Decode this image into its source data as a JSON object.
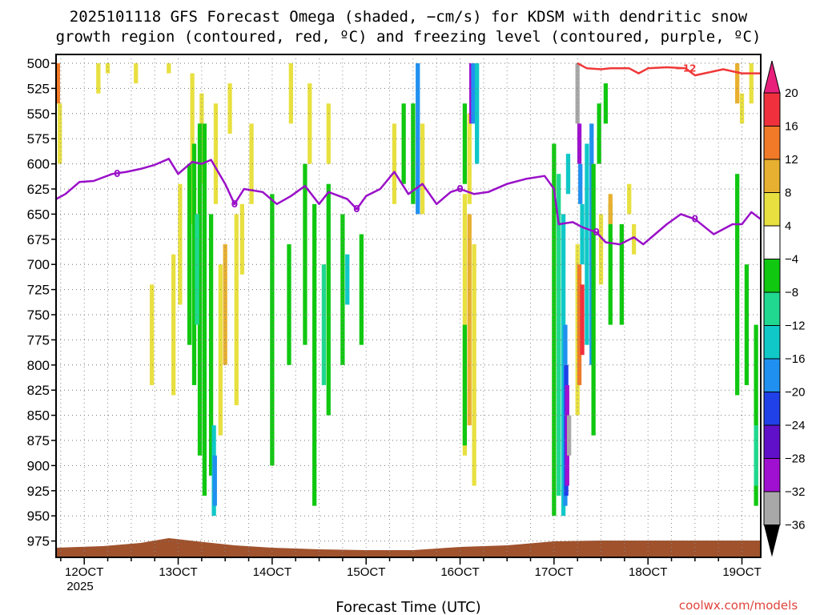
{
  "chart_data": {
    "type": "heatmap",
    "title_line1": "2025101118 GFS Forecast Omega (shaded, −cm/s) for KDSM with dendritic snow",
    "title_line2": "growth region (contoured, red, ºC) and freezing level (contoured, purple, ºC)",
    "xlabel": "Forecast Time (UTC)",
    "watermark": "coolwx.com/models",
    "year_label": "2025",
    "y_ticks": [
      "500",
      "525",
      "550",
      "575",
      "600",
      "625",
      "650",
      "675",
      "700",
      "725",
      "750",
      "775",
      "800",
      "825",
      "850",
      "875",
      "900",
      "925",
      "950",
      "975"
    ],
    "y_range_hPa": [
      500,
      1000
    ],
    "x_range_day": [
      11.7,
      19.2
    ],
    "x_ticks": [
      {
        "day": 12,
        "label": "12OCT"
      },
      {
        "day": 13,
        "label": "13OCT"
      },
      {
        "day": 14,
        "label": "14OCT"
      },
      {
        "day": 15,
        "label": "15OCT"
      },
      {
        "day": 16,
        "label": "16OCT"
      },
      {
        "day": 17,
        "label": "17OCT"
      },
      {
        "day": 18,
        "label": "18OCT"
      },
      {
        "day": 19,
        "label": "19OCT"
      }
    ],
    "colorbar": {
      "labels": [
        "20",
        "16",
        "12",
        "8",
        "4",
        "−4",
        "−8",
        "−12",
        "−16",
        "−20",
        "−24",
        "−28",
        "−32",
        "−36"
      ],
      "segments": [
        {
          "from": 16,
          "to": 20,
          "color": "#f0303c"
        },
        {
          "from": 12,
          "to": 16,
          "color": "#f07a28"
        },
        {
          "from": 8,
          "to": 12,
          "color": "#e8b030"
        },
        {
          "from": 4,
          "to": 8,
          "color": "#e8e040"
        },
        {
          "from": -4,
          "to": 4,
          "color": "#ffffff"
        },
        {
          "from": -8,
          "to": -4,
          "color": "#10c810"
        },
        {
          "from": -12,
          "to": -8,
          "color": "#20d890"
        },
        {
          "from": -16,
          "to": -12,
          "color": "#10c8c8"
        },
        {
          "from": -20,
          "to": -16,
          "color": "#2090f0"
        },
        {
          "from": -24,
          "to": -20,
          "color": "#2040e8"
        },
        {
          "from": -28,
          "to": -24,
          "color": "#6010c8"
        },
        {
          "from": -32,
          "to": -28,
          "color": "#a010d0"
        },
        {
          "from": -36,
          "to": -32,
          "color": "#a8a8a8"
        }
      ],
      "top_arrow_color": "#e8207c",
      "bottom_arrow_color": "#000000"
    },
    "shaded_cells": [
      {
        "t": 11.72,
        "p1": 500,
        "p2": 540,
        "v": 14
      },
      {
        "t": 11.74,
        "p1": 540,
        "p2": 600,
        "v": 6
      },
      {
        "t": 12.15,
        "p1": 500,
        "p2": 530,
        "v": 6
      },
      {
        "t": 12.25,
        "p1": 500,
        "p2": 510,
        "v": 6
      },
      {
        "t": 12.55,
        "p1": 500,
        "p2": 520,
        "v": 6
      },
      {
        "t": 12.9,
        "p1": 500,
        "p2": 510,
        "v": 6
      },
      {
        "t": 13.15,
        "p1": 510,
        "p2": 660,
        "v": 6
      },
      {
        "t": 13.25,
        "p1": 530,
        "p2": 620,
        "v": 6
      },
      {
        "t": 13.4,
        "p1": 540,
        "p2": 640,
        "v": 6
      },
      {
        "t": 13.55,
        "p1": 520,
        "p2": 570,
        "v": 6
      },
      {
        "t": 13.02,
        "p1": 620,
        "p2": 740,
        "v": 6
      },
      {
        "t": 13.12,
        "p1": 600,
        "p2": 780,
        "v": -6
      },
      {
        "t": 13.17,
        "p1": 580,
        "p2": 820,
        "v": -6
      },
      {
        "t": 13.23,
        "p1": 560,
        "p2": 890,
        "v": -6
      },
      {
        "t": 13.28,
        "p1": 560,
        "p2": 930,
        "v": -6
      },
      {
        "t": 13.2,
        "p1": 650,
        "p2": 760,
        "v": -10
      },
      {
        "t": 13.35,
        "p1": 650,
        "p2": 910,
        "v": -6
      },
      {
        "t": 13.38,
        "p1": 860,
        "p2": 950,
        "v": -14
      },
      {
        "t": 13.39,
        "p1": 890,
        "p2": 940,
        "v": -18
      },
      {
        "t": 13.45,
        "p1": 700,
        "p2": 870,
        "v": 6
      },
      {
        "t": 13.5,
        "p1": 680,
        "p2": 800,
        "v": 10
      },
      {
        "t": 13.62,
        "p1": 650,
        "p2": 840,
        "v": 6
      },
      {
        "t": 13.68,
        "p1": 640,
        "p2": 710,
        "v": 6
      },
      {
        "t": 12.72,
        "p1": 720,
        "p2": 820,
        "v": 6
      },
      {
        "t": 12.95,
        "p1": 690,
        "p2": 830,
        "v": 6
      },
      {
        "t": 13.78,
        "p1": 560,
        "p2": 640,
        "v": 6
      },
      {
        "t": 14.0,
        "p1": 630,
        "p2": 900,
        "v": -6
      },
      {
        "t": 14.18,
        "p1": 680,
        "p2": 800,
        "v": -6
      },
      {
        "t": 14.35,
        "p1": 600,
        "p2": 780,
        "v": -6
      },
      {
        "t": 14.45,
        "p1": 640,
        "p2": 940,
        "v": -6
      },
      {
        "t": 14.6,
        "p1": 620,
        "p2": 850,
        "v": -6
      },
      {
        "t": 14.55,
        "p1": 700,
        "p2": 820,
        "v": -10
      },
      {
        "t": 14.75,
        "p1": 650,
        "p2": 800,
        "v": -6
      },
      {
        "t": 14.95,
        "p1": 670,
        "p2": 780,
        "v": -6
      },
      {
        "t": 14.8,
        "p1": 690,
        "p2": 740,
        "v": -14
      },
      {
        "t": 14.2,
        "p1": 500,
        "p2": 560,
        "v": 6
      },
      {
        "t": 14.4,
        "p1": 520,
        "p2": 600,
        "v": 6
      },
      {
        "t": 14.6,
        "p1": 540,
        "p2": 600,
        "v": 6
      },
      {
        "t": 15.55,
        "p1": 500,
        "p2": 650,
        "v": -18
      },
      {
        "t": 15.5,
        "p1": 540,
        "p2": 640,
        "v": -6
      },
      {
        "t": 15.6,
        "p1": 560,
        "p2": 650,
        "v": 6
      },
      {
        "t": 15.3,
        "p1": 560,
        "p2": 640,
        "v": 6
      },
      {
        "t": 15.4,
        "p1": 540,
        "p2": 620,
        "v": -6
      },
      {
        "t": 16.05,
        "p1": 540,
        "p2": 620,
        "v": -6
      },
      {
        "t": 16.1,
        "p1": 550,
        "p2": 640,
        "v": 6
      },
      {
        "t": 16.05,
        "p1": 630,
        "p2": 890,
        "v": 6
      },
      {
        "t": 16.1,
        "p1": 650,
        "p2": 860,
        "v": 10
      },
      {
        "t": 16.15,
        "p1": 680,
        "p2": 920,
        "v": 6
      },
      {
        "t": 16.05,
        "p1": 760,
        "p2": 880,
        "v": -6
      },
      {
        "t": 16.12,
        "p1": 500,
        "p2": 560,
        "v": -30
      },
      {
        "t": 16.14,
        "p1": 500,
        "p2": 560,
        "v": -20
      },
      {
        "t": 16.18,
        "p1": 500,
        "p2": 600,
        "v": -14
      },
      {
        "t": 17.0,
        "p1": 580,
        "p2": 950,
        "v": -6
      },
      {
        "t": 17.05,
        "p1": 610,
        "p2": 930,
        "v": -10
      },
      {
        "t": 17.1,
        "p1": 650,
        "p2": 950,
        "v": -14
      },
      {
        "t": 17.12,
        "p1": 760,
        "p2": 940,
        "v": -18
      },
      {
        "t": 17.13,
        "p1": 800,
        "p2": 930,
        "v": -22
      },
      {
        "t": 17.14,
        "p1": 820,
        "p2": 920,
        "v": -30
      },
      {
        "t": 17.16,
        "p1": 850,
        "p2": 890,
        "v": -34
      },
      {
        "t": 17.15,
        "p1": 590,
        "p2": 630,
        "v": -14
      },
      {
        "t": 17.25,
        "p1": 500,
        "p2": 560,
        "v": -34
      },
      {
        "t": 17.27,
        "p1": 560,
        "p2": 600,
        "v": -30
      },
      {
        "t": 17.28,
        "p1": 600,
        "p2": 640,
        "v": -18
      },
      {
        "t": 17.3,
        "p1": 640,
        "p2": 700,
        "v": -14
      },
      {
        "t": 17.25,
        "p1": 680,
        "p2": 850,
        "v": 6
      },
      {
        "t": 17.27,
        "p1": 700,
        "p2": 820,
        "v": 12
      },
      {
        "t": 17.3,
        "p1": 720,
        "p2": 790,
        "v": 18
      },
      {
        "t": 17.35,
        "p1": 580,
        "p2": 780,
        "v": -14
      },
      {
        "t": 17.4,
        "p1": 560,
        "p2": 800,
        "v": -18
      },
      {
        "t": 17.42,
        "p1": 600,
        "p2": 870,
        "v": -6
      },
      {
        "t": 17.48,
        "p1": 540,
        "p2": 600,
        "v": -6
      },
      {
        "t": 17.55,
        "p1": 520,
        "p2": 560,
        "v": -6
      },
      {
        "t": 17.5,
        "p1": 650,
        "p2": 720,
        "v": 6
      },
      {
        "t": 17.6,
        "p1": 640,
        "p2": 760,
        "v": -6
      },
      {
        "t": 17.72,
        "p1": 660,
        "p2": 760,
        "v": -6
      },
      {
        "t": 17.6,
        "p1": 630,
        "p2": 660,
        "v": 10
      },
      {
        "t": 17.8,
        "p1": 620,
        "p2": 650,
        "v": 6
      },
      {
        "t": 17.85,
        "p1": 660,
        "p2": 690,
        "v": 6
      },
      {
        "t": 18.95,
        "p1": 500,
        "p2": 540,
        "v": 10
      },
      {
        "t": 19.0,
        "p1": 530,
        "p2": 560,
        "v": 6
      },
      {
        "t": 19.1,
        "p1": 500,
        "p2": 540,
        "v": 6
      },
      {
        "t": 18.95,
        "p1": 610,
        "p2": 830,
        "v": -6
      },
      {
        "t": 19.05,
        "p1": 700,
        "p2": 820,
        "v": -6
      },
      {
        "t": 19.15,
        "p1": 760,
        "p2": 940,
        "v": -6
      },
      {
        "t": 19.15,
        "p1": 860,
        "p2": 920,
        "v": -10
      }
    ],
    "freezing_level": {
      "label": "0",
      "points": [
        [
          11.7,
          635
        ],
        [
          11.8,
          630
        ],
        [
          11.95,
          618
        ],
        [
          12.1,
          617
        ],
        [
          12.3,
          610
        ],
        [
          12.45,
          608
        ],
        [
          12.6,
          605
        ],
        [
          12.75,
          601
        ],
        [
          12.9,
          595
        ],
        [
          13.0,
          610
        ],
        [
          13.15,
          598
        ],
        [
          13.25,
          600
        ],
        [
          13.35,
          596
        ],
        [
          13.5,
          620
        ],
        [
          13.6,
          640
        ],
        [
          13.7,
          625
        ],
        [
          13.9,
          628
        ],
        [
          14.05,
          640
        ],
        [
          14.2,
          632
        ],
        [
          14.35,
          622
        ],
        [
          14.5,
          640
        ],
        [
          14.6,
          628
        ],
        [
          14.8,
          635
        ],
        [
          14.9,
          645
        ],
        [
          15.0,
          632
        ],
        [
          15.15,
          625
        ],
        [
          15.3,
          608
        ],
        [
          15.45,
          630
        ],
        [
          15.6,
          620
        ],
        [
          15.75,
          640
        ],
        [
          15.9,
          628
        ],
        [
          16.0,
          625
        ],
        [
          16.15,
          630
        ],
        [
          16.3,
          628
        ],
        [
          16.5,
          620
        ],
        [
          16.7,
          615
        ],
        [
          16.9,
          612
        ],
        [
          17.0,
          625
        ],
        [
          17.05,
          660
        ],
        [
          17.2,
          658
        ],
        [
          17.3,
          663
        ],
        [
          17.45,
          668
        ],
        [
          17.55,
          678
        ],
        [
          17.7,
          680
        ],
        [
          17.85,
          673
        ],
        [
          17.95,
          680
        ],
        [
          18.05,
          672
        ],
        [
          18.2,
          660
        ],
        [
          18.35,
          650
        ],
        [
          18.5,
          655
        ],
        [
          18.7,
          670
        ],
        [
          18.9,
          660
        ],
        [
          19.0,
          660
        ],
        [
          19.1,
          648
        ],
        [
          19.2,
          655
        ]
      ]
    },
    "dgz_contour": {
      "label": "−12",
      "points": [
        [
          17.25,
          500
        ],
        [
          17.35,
          505
        ],
        [
          17.5,
          506
        ],
        [
          17.6,
          505
        ],
        [
          17.8,
          505
        ],
        [
          17.9,
          510
        ],
        [
          18.0,
          505
        ],
        [
          18.2,
          504
        ],
        [
          18.4,
          505
        ],
        [
          18.5,
          512
        ],
        [
          18.6,
          510
        ],
        [
          18.8,
          506
        ],
        [
          19.0,
          510
        ],
        [
          19.2,
          510
        ]
      ]
    }
  }
}
